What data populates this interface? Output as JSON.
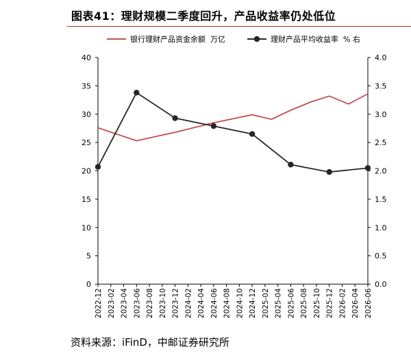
{
  "header": {
    "title": "图表41：理财规模二季度回升，产品收益率仍处低位"
  },
  "source": "资料来源：iFinD，中邮证券研究所",
  "colors": {
    "series1": "#c0504d",
    "series2": "#262626",
    "title_rule": "#b22a2a"
  },
  "chart_data": {
    "type": "line",
    "categories": [
      "2022-12",
      "2023-02",
      "2023-04",
      "2023-06",
      "2023-08",
      "2023-10",
      "2023-12",
      "2024-02",
      "2024-04",
      "2024-06",
      "2024-08",
      "2024-10",
      "2024-12",
      "2025-02",
      "2025-04",
      "2025-06",
      "2025-08",
      "2025-10",
      "2025-12",
      "2026-02",
      "2026-04",
      "2026-06"
    ],
    "series": [
      {
        "name": "银行理财产品资金余额  万亿",
        "axis": "left",
        "marker": "none",
        "x": [
          "2022-12",
          "2023-06",
          "2023-12",
          "2024-06",
          "2024-12",
          "2025-03",
          "2025-06",
          "2025-09",
          "2025-12",
          "2026-03",
          "2026-06"
        ],
        "values": [
          27.6,
          25.3,
          26.8,
          28.5,
          29.9,
          29.1,
          30.7,
          32.1,
          33.2,
          31.8,
          33.6
        ]
      },
      {
        "name": "理财产品平均收益率  % 右",
        "axis": "right",
        "marker": "circle",
        "x": [
          "2022-12",
          "2023-06",
          "2023-12",
          "2024-06",
          "2024-12",
          "2025-06",
          "2025-12",
          "2026-06"
        ],
        "values": [
          2.07,
          3.38,
          2.93,
          2.79,
          2.65,
          2.11,
          1.98,
          2.05
        ]
      }
    ],
    "left_axis": {
      "min": 0,
      "max": 40,
      "ticks": [
        "0",
        "5",
        "10",
        "15",
        "20",
        "25",
        "30",
        "35",
        "40"
      ]
    },
    "right_axis": {
      "min": 0,
      "max": 4,
      "ticks": [
        "0.0",
        "0.5",
        "1.0",
        "1.5",
        "2.0",
        "2.5",
        "3.0",
        "3.5",
        "4.0"
      ]
    },
    "grid": false,
    "legend": "top"
  }
}
